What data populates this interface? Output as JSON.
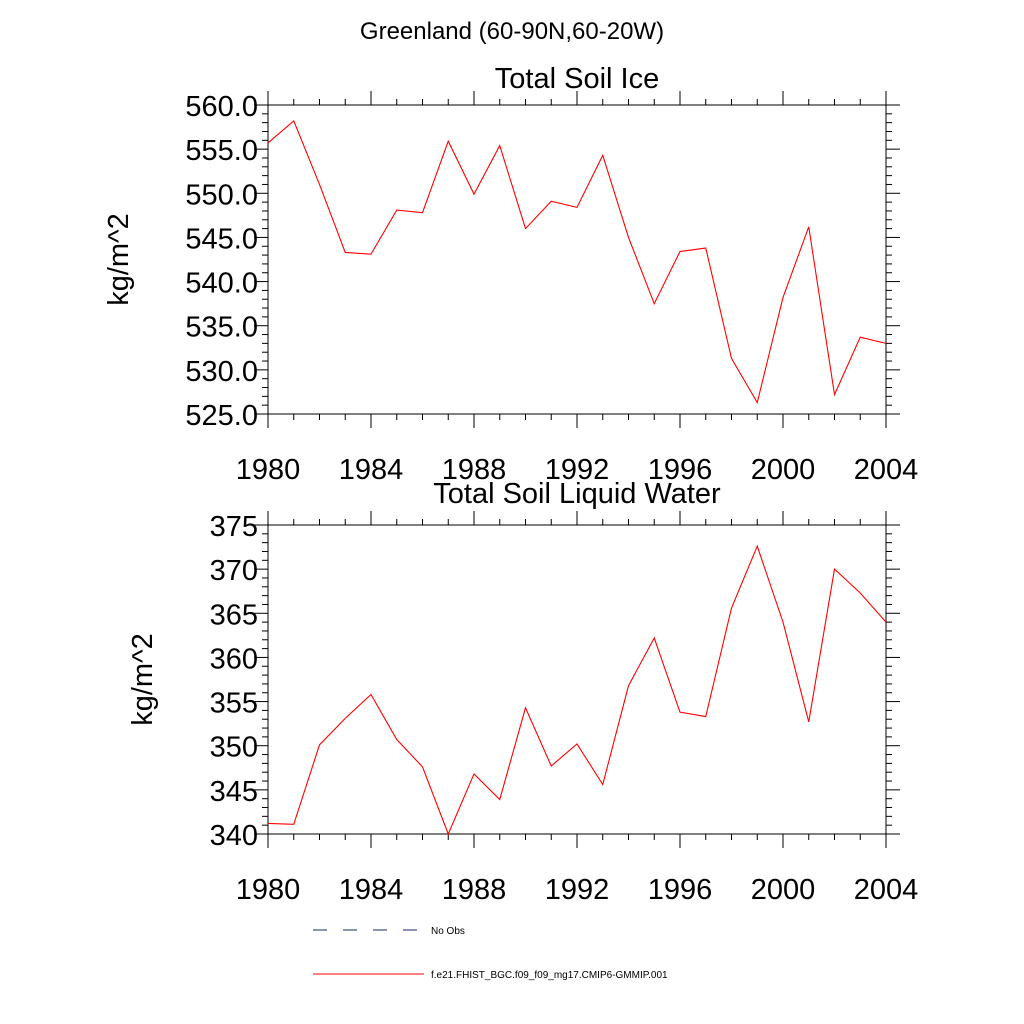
{
  "figure": {
    "suptitle": "Greenland (60-90N,60-20W)"
  },
  "chart_data": [
    {
      "type": "line",
      "title": "Total Soil Ice",
      "xlabel": "",
      "ylabel": "kg/m^2",
      "xlim": [
        1980,
        2004
      ],
      "ylim": [
        525,
        560
      ],
      "xticks": [
        "1980",
        "1984",
        "1988",
        "1992",
        "1996",
        "2000",
        "2004"
      ],
      "yticks": [
        "525.0",
        "530.0",
        "535.0",
        "540.0",
        "545.0",
        "550.0",
        "555.0",
        "560.0"
      ],
      "grid": false,
      "series": [
        {
          "name": "f.e21.FHIST_BGC.f09_f09_mg17.CMIP6-GMMIP.001",
          "color": "#ff0000",
          "x": [
            1980,
            1981,
            1982,
            1983,
            1984,
            1985,
            1986,
            1987,
            1988,
            1989,
            1990,
            1991,
            1992,
            1993,
            1994,
            1995,
            1996,
            1997,
            1998,
            1999,
            2000,
            2001,
            2002,
            2003,
            2004
          ],
          "values": [
            555.7,
            558.2,
            551.0,
            543.3,
            543.1,
            548.1,
            547.8,
            555.9,
            549.9,
            555.4,
            546.0,
            549.1,
            548.4,
            554.3,
            545.0,
            537.5,
            543.4,
            543.8,
            531.3,
            526.3,
            538.2,
            546.2,
            527.2,
            533.7,
            533.0
          ]
        }
      ]
    },
    {
      "type": "line",
      "title": "Total Soil Liquid Water",
      "xlabel": "",
      "ylabel": "kg/m^2",
      "xlim": [
        1980,
        2004
      ],
      "ylim": [
        340,
        375
      ],
      "xticks": [
        "1980",
        "1984",
        "1988",
        "1992",
        "1996",
        "2000",
        "2004"
      ],
      "yticks": [
        "340",
        "345",
        "350",
        "355",
        "360",
        "365",
        "370",
        "375"
      ],
      "grid": false,
      "series": [
        {
          "name": "f.e21.FHIST_BGC.f09_f09_mg17.CMIP6-GMMIP.001",
          "color": "#ff0000",
          "x": [
            1980,
            1981,
            1982,
            1983,
            1984,
            1985,
            1986,
            1987,
            1988,
            1989,
            1990,
            1991,
            1992,
            1993,
            1994,
            1995,
            1996,
            1997,
            1998,
            1999,
            2000,
            2001,
            2002,
            2003,
            2004
          ],
          "values": [
            341.2,
            341.1,
            350.1,
            353.1,
            355.8,
            350.7,
            347.6,
            340.0,
            346.8,
            343.9,
            354.3,
            347.7,
            350.2,
            345.6,
            356.8,
            362.2,
            353.8,
            353.3,
            365.6,
            372.6,
            364.0,
            352.7,
            370.0,
            367.3,
            364.0
          ]
        }
      ]
    }
  ],
  "legend": {
    "placement": "bottom-center",
    "items": [
      {
        "label": "No Obs",
        "style": "dashed",
        "color": "#1a2a6c"
      },
      {
        "label": "f.e21.FHIST_BGC.f09_f09_mg17.CMIP6-GMMIP.001",
        "style": "solid",
        "color": "#ff0000"
      }
    ]
  }
}
